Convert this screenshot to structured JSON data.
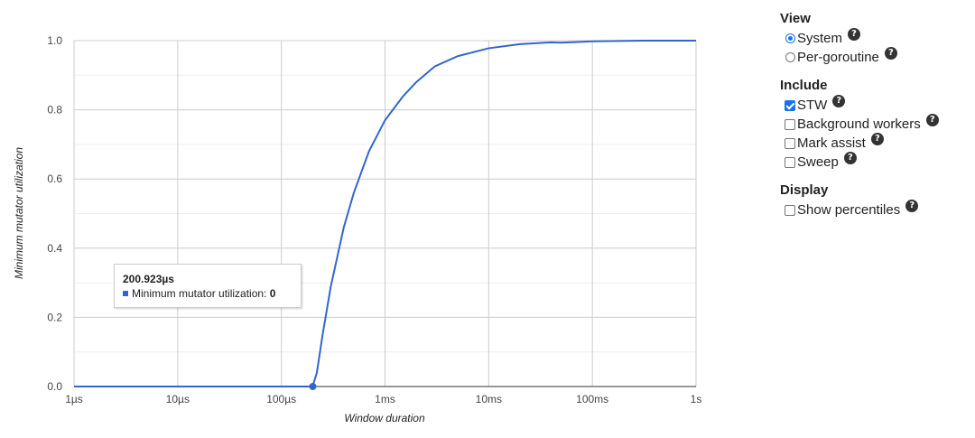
{
  "chart_data": {
    "type": "line",
    "x_scale": "log",
    "xlabel": "Window duration",
    "ylabel": "Minimum mutator utilization",
    "xlim_seconds": [
      1e-06,
      1
    ],
    "ylim": [
      0,
      1
    ],
    "grid": true,
    "x_ticks": [
      {
        "value": 1e-06,
        "label": "1µs"
      },
      {
        "value": 1e-05,
        "label": "10µs"
      },
      {
        "value": 0.0001,
        "label": "100µs"
      },
      {
        "value": 0.001,
        "label": "1ms"
      },
      {
        "value": 0.01,
        "label": "10ms"
      },
      {
        "value": 0.1,
        "label": "100ms"
      },
      {
        "value": 1,
        "label": "1s"
      }
    ],
    "y_ticks": [
      {
        "value": 0,
        "label": "0.0"
      },
      {
        "value": 0.2,
        "label": "0.2"
      },
      {
        "value": 0.4,
        "label": "0.4"
      },
      {
        "value": 0.6,
        "label": "0.6"
      },
      {
        "value": 0.8,
        "label": "0.8"
      },
      {
        "value": 1.0,
        "label": "1.0"
      }
    ],
    "series": [
      {
        "color": "#3366cc",
        "x": [
          1e-06,
          1e-05,
          0.0001,
          0.0002,
          0.00022,
          0.00025,
          0.0003,
          0.0004,
          0.0005,
          0.0007,
          0.001,
          0.0015,
          0.002,
          0.003,
          0.005,
          0.01,
          0.02,
          0.04,
          0.05,
          0.1,
          0.3,
          1
        ],
        "y": [
          0,
          0,
          0,
          0,
          0.04,
          0.15,
          0.29,
          0.46,
          0.56,
          0.68,
          0.77,
          0.84,
          0.88,
          0.925,
          0.955,
          0.978,
          0.99,
          0.995,
          0.994,
          0.998,
          1.0,
          1.0
        ]
      }
    ],
    "highlight_point": {
      "x": 0.000200923,
      "y": 0
    }
  },
  "tooltip": {
    "title": "200.923µs",
    "series_label": "Minimum mutator utilization:",
    "value": "0"
  },
  "controls": {
    "view": {
      "title": "View",
      "options": [
        {
          "label": "System",
          "selected": true
        },
        {
          "label": "Per-goroutine",
          "selected": false
        }
      ]
    },
    "include": {
      "title": "Include",
      "options": [
        {
          "label": "STW",
          "checked": true
        },
        {
          "label": "Background workers",
          "checked": false
        },
        {
          "label": "Mark assist",
          "checked": false
        },
        {
          "label": "Sweep",
          "checked": false
        }
      ]
    },
    "display": {
      "title": "Display",
      "options": [
        {
          "label": "Show percentiles",
          "checked": false
        }
      ]
    },
    "help_icon_glyph": "?"
  }
}
